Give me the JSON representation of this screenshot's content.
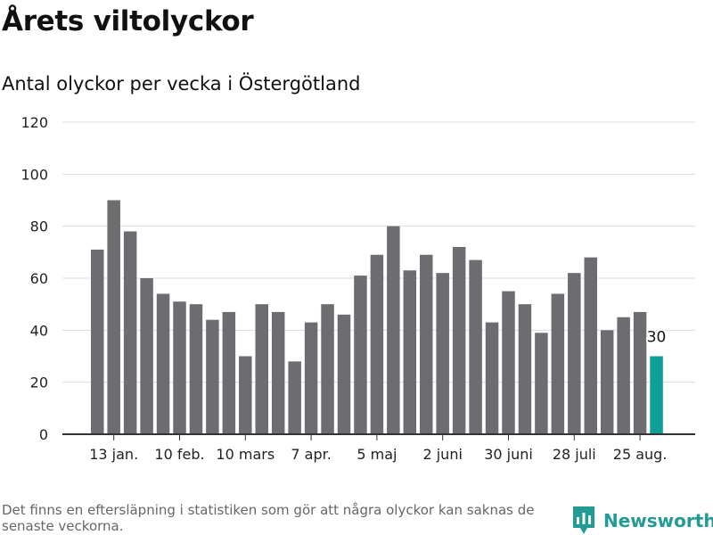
{
  "header": {
    "title": "Årets viltolyckor",
    "subtitle": "Antal olyckor per vecka i Östergötland"
  },
  "footer": {
    "note": "Det finns en eftersläpning i statistiken som gör att några olyckor kan saknas de senaste veckorna.",
    "brand": "Newsworthy",
    "brand_icon": "newsworthy-logo-icon"
  },
  "colors": {
    "bar": "#6d6c71",
    "highlight": "#0e9f96",
    "grid": "#dddddd",
    "axis": "#333333",
    "brand": "#229b95"
  },
  "chart_data": {
    "type": "bar",
    "x": [
      1,
      2,
      3,
      4,
      5,
      6,
      7,
      8,
      9,
      10,
      11,
      12,
      13,
      14,
      15,
      16,
      17,
      18,
      19,
      20,
      21,
      22,
      23,
      24,
      25,
      26,
      27,
      28,
      29,
      30,
      31,
      32,
      33,
      34,
      35
    ],
    "values": [
      71,
      90,
      78,
      60,
      54,
      51,
      50,
      44,
      47,
      30,
      50,
      47,
      28,
      43,
      50,
      46,
      61,
      69,
      80,
      63,
      69,
      62,
      72,
      67,
      43,
      55,
      50,
      39,
      54,
      62,
      68,
      40,
      45,
      47,
      30
    ],
    "highlight_index": 34,
    "highlight_label": "30",
    "tick_positions": [
      2,
      6,
      10,
      14,
      18,
      22,
      26,
      30,
      34
    ],
    "tick_labels": [
      "13 jan.",
      "10 feb.",
      "10 mars",
      "7 apr.",
      "5 maj",
      "2 juni",
      "30 juni",
      "28 juli",
      "25 aug."
    ],
    "ylim": [
      0,
      120
    ],
    "yticks": [
      0,
      20,
      40,
      60,
      80,
      100,
      120
    ],
    "grid": true
  }
}
